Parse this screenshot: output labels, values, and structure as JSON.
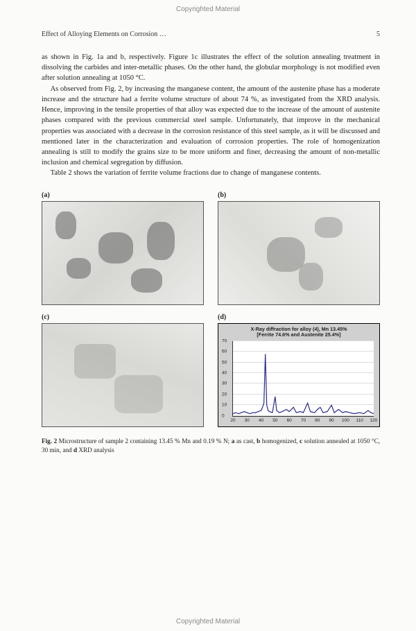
{
  "watermark": "Copyrighted Material",
  "header": {
    "title": "Effect of Alloying Elements on Corrosion …",
    "page": "5"
  },
  "paragraphs": {
    "p1": "as shown in Fig. 1a and b, respectively. Figure 1c illustrates the effect of the solution annealing treatment in dissolving the carbides and inter-metallic phases. On the other hand, the globular morphology is not modified even after solution annealing at 1050 °C.",
    "p2": "As observed from Fig. 2, by increasing the manganese content, the amount of the austenite phase has a moderate increase and the structure had a ferrite volume structure of about 74 %, as investigated from the XRD analysis. Hence, improving in the tensile properties of that alloy was expected due to the increase of the amount of austenite phases compared with the previous commercial steel sample. Unfortunately, that improve in the mechanical properties was associated with a decrease in the corrosion resistance of this steel sample, as it will be discussed and mentioned later in the characterization and evaluation of corrosion properties. The role of homogenization annealing is still to modify the grains size to be more uniform and finer, decreasing the amount of non-metallic inclusion and chemical segregation by diffusion.",
    "p3": "Table 2 shows the variation of ferrite volume fractions due to change of manganese contents."
  },
  "figure": {
    "labels": {
      "a": "(a)",
      "b": "(b)",
      "c": "(c)",
      "d": "(d)"
    },
    "chart": {
      "title_line1": "X-Ray diffraction for alloy (4), Mn 13.45%",
      "title_line2": "[Ferrite 74.6% and Austenite 25.4%]",
      "xmin": 20,
      "xmax": 120,
      "ymin": 0,
      "ymax": 70,
      "yticks": [
        0,
        10,
        20,
        30,
        40,
        50,
        60,
        70
      ],
      "xticks": [
        20,
        30,
        40,
        50,
        60,
        70,
        80,
        90,
        100,
        110,
        120
      ],
      "line_color": "#2a2a8f",
      "bg_color": "#d0d0d0",
      "plot_bg": "#ffffff",
      "peaks": [
        [
          20,
          2
        ],
        [
          22,
          3
        ],
        [
          24,
          2
        ],
        [
          26,
          3
        ],
        [
          28,
          4
        ],
        [
          30,
          3
        ],
        [
          32,
          2
        ],
        [
          34,
          3
        ],
        [
          36,
          3
        ],
        [
          38,
          4
        ],
        [
          40,
          5
        ],
        [
          41,
          8
        ],
        [
          42,
          12
        ],
        [
          43,
          58
        ],
        [
          44,
          10
        ],
        [
          45,
          5
        ],
        [
          46,
          4
        ],
        [
          48,
          3
        ],
        [
          50,
          18
        ],
        [
          51,
          5
        ],
        [
          53,
          3
        ],
        [
          55,
          4
        ],
        [
          58,
          6
        ],
        [
          60,
          4
        ],
        [
          63,
          8
        ],
        [
          65,
          3
        ],
        [
          68,
          4
        ],
        [
          70,
          3
        ],
        [
          73,
          12
        ],
        [
          75,
          4
        ],
        [
          78,
          3
        ],
        [
          80,
          6
        ],
        [
          82,
          8
        ],
        [
          84,
          3
        ],
        [
          87,
          4
        ],
        [
          90,
          10
        ],
        [
          92,
          3
        ],
        [
          95,
          6
        ],
        [
          98,
          3
        ],
        [
          100,
          4
        ],
        [
          103,
          3
        ],
        [
          106,
          2
        ],
        [
          110,
          3
        ],
        [
          113,
          2
        ],
        [
          116,
          5
        ],
        [
          118,
          3
        ],
        [
          120,
          2
        ]
      ]
    },
    "caption_lead": "Fig. 2",
    "caption_body": " Microstructure of sample 2 containing 13.45 % Mn and 0.19 % N; ",
    "caption_a": "a",
    "caption_a_text": " as cast, ",
    "caption_b": "b",
    "caption_b_text": " homogenized, ",
    "caption_c": "c",
    "caption_c_text": " solution annealed at 1050 °C, 30 min, and ",
    "caption_d": "d",
    "caption_d_text": " XRD analysis"
  }
}
